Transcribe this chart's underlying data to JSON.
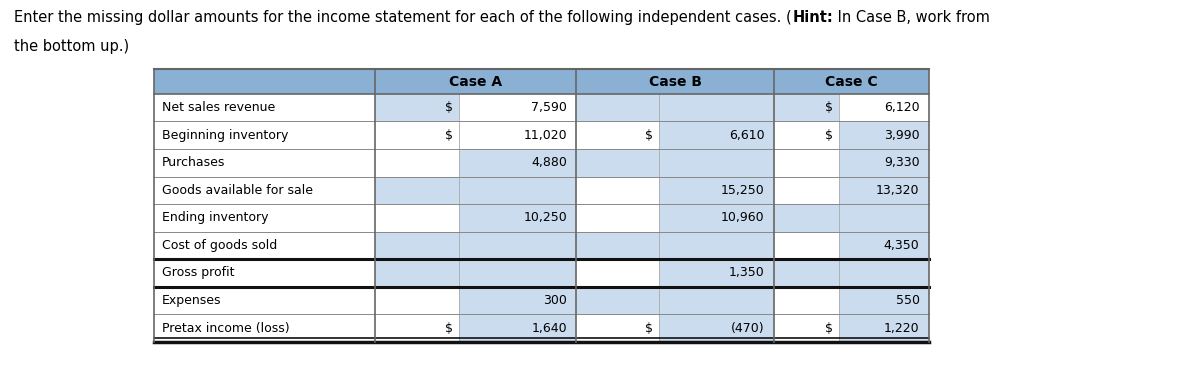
{
  "header_color": "#8ab0d4",
  "border_color": "#666666",
  "thick_border_color": "#111111",
  "input_cell_color": "#ccdcef",
  "rows": [
    "Net sales revenue",
    "Beginning inventory",
    "Purchases",
    "Goods available for sale",
    "Ending inventory",
    "Cost of goods sold",
    "Gross profit",
    "Expenses",
    "Pretax income (loss)"
  ],
  "col_headers": [
    "Case A",
    "Case B",
    "Case C"
  ],
  "values": [
    [
      0,
      0,
      "$",
      "7,590"
    ],
    [
      0,
      2,
      "$",
      "6,120"
    ],
    [
      1,
      0,
      "$",
      "11,020"
    ],
    [
      1,
      1,
      "$",
      "6,610"
    ],
    [
      1,
      2,
      "$",
      "3,990"
    ],
    [
      2,
      0,
      "",
      "4,880"
    ],
    [
      2,
      2,
      "",
      "9,330"
    ],
    [
      3,
      1,
      "",
      "15,250"
    ],
    [
      3,
      2,
      "",
      "13,320"
    ],
    [
      4,
      0,
      "",
      "10,250"
    ],
    [
      4,
      1,
      "",
      "10,960"
    ],
    [
      5,
      2,
      "",
      "4,350"
    ],
    [
      6,
      1,
      "",
      "1,350"
    ],
    [
      7,
      0,
      "",
      "300"
    ],
    [
      7,
      2,
      "",
      "550"
    ],
    [
      8,
      0,
      "$",
      "1,640"
    ],
    [
      8,
      1,
      "$",
      "(470)"
    ],
    [
      8,
      2,
      "$",
      "1,220"
    ]
  ],
  "blank_cells": [
    [
      0,
      0,
      "left"
    ],
    [
      0,
      1,
      "left"
    ],
    [
      0,
      1,
      "right"
    ],
    [
      0,
      2,
      "left"
    ],
    [
      1,
      1,
      "right"
    ],
    [
      1,
      2,
      "right"
    ],
    [
      2,
      0,
      "right"
    ],
    [
      2,
      1,
      "left"
    ],
    [
      2,
      1,
      "right"
    ],
    [
      2,
      2,
      "right"
    ],
    [
      3,
      0,
      "left"
    ],
    [
      3,
      0,
      "right"
    ],
    [
      3,
      1,
      "right"
    ],
    [
      3,
      2,
      "right"
    ],
    [
      4,
      0,
      "right"
    ],
    [
      4,
      1,
      "right"
    ],
    [
      4,
      2,
      "left"
    ],
    [
      4,
      2,
      "right"
    ],
    [
      5,
      0,
      "left"
    ],
    [
      5,
      0,
      "right"
    ],
    [
      5,
      1,
      "left"
    ],
    [
      5,
      1,
      "right"
    ],
    [
      5,
      2,
      "right"
    ],
    [
      6,
      0,
      "left"
    ],
    [
      6,
      0,
      "right"
    ],
    [
      6,
      1,
      "right"
    ],
    [
      6,
      2,
      "left"
    ],
    [
      6,
      2,
      "right"
    ],
    [
      7,
      0,
      "right"
    ],
    [
      7,
      1,
      "left"
    ],
    [
      7,
      1,
      "right"
    ],
    [
      7,
      2,
      "right"
    ],
    [
      8,
      0,
      "right"
    ],
    [
      8,
      1,
      "right"
    ],
    [
      8,
      2,
      "right"
    ]
  ]
}
